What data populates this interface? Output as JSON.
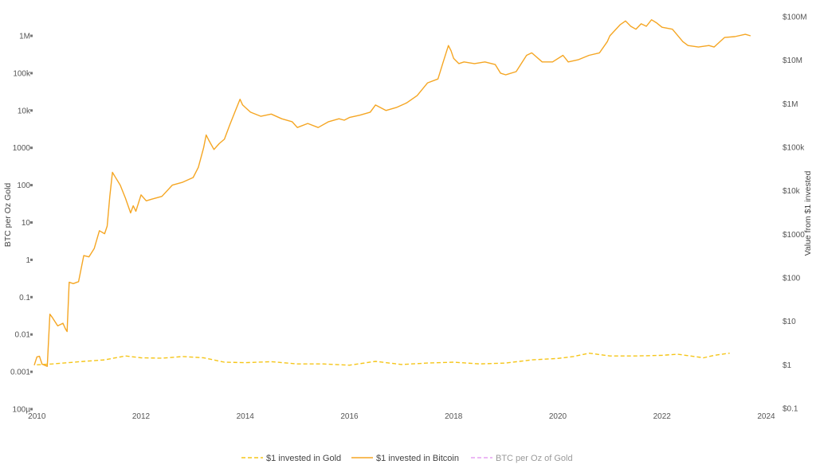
{
  "chart_data": {
    "type": "line",
    "title": "",
    "x_ticks": [
      "2010",
      "2012",
      "2014",
      "2016",
      "2018",
      "2020",
      "2022",
      "2024"
    ],
    "x_range": [
      2009.95,
      2024.1
    ],
    "left_axis": {
      "label": "BTC per Oz Gold",
      "scale": "log",
      "range": [
        0.0001,
        1000000
      ],
      "ticks": [
        "100µ",
        "0.001",
        "0.01",
        "0.1",
        "1",
        "10",
        "100",
        "1000",
        "10k",
        "100k",
        "1M"
      ]
    },
    "right_axis": {
      "label": "Value from $1 invested",
      "scale": "log",
      "range": [
        0.1,
        100000000
      ],
      "ticks": [
        "$0.1",
        "$1",
        "$10",
        "$100",
        "$1000",
        "$10k",
        "$100k",
        "$1M",
        "$10M",
        "$100M"
      ]
    },
    "legend_position": "bottom",
    "grid": false,
    "colors": {
      "gold": "#f5c518",
      "bitcoin": "#f5a623",
      "ratio": "#e6a1f2"
    },
    "series": [
      {
        "name": "$1 invested in Gold",
        "axis": "right",
        "style": "dashed",
        "x": [
          2010.0,
          2010.3,
          2010.6,
          2010.9,
          2011.3,
          2011.7,
          2012.0,
          2012.4,
          2012.8,
          2013.2,
          2013.6,
          2014.0,
          2014.5,
          2015.0,
          2015.5,
          2016.0,
          2016.5,
          2017.0,
          2017.5,
          2018.0,
          2018.5,
          2019.0,
          2019.5,
          2020.0,
          2020.3,
          2020.6,
          2021.0,
          2021.5,
          2022.0,
          2022.3,
          2022.8,
          2023.0,
          2023.3
        ],
        "y": [
          1.0,
          1.05,
          1.12,
          1.2,
          1.3,
          1.6,
          1.45,
          1.42,
          1.55,
          1.45,
          1.15,
          1.12,
          1.18,
          1.05,
          1.05,
          0.98,
          1.2,
          1.02,
          1.1,
          1.15,
          1.05,
          1.1,
          1.3,
          1.4,
          1.55,
          1.85,
          1.6,
          1.6,
          1.65,
          1.75,
          1.45,
          1.65,
          1.85
        ]
      },
      {
        "name": "$1 invested in Bitcoin",
        "axis": "left",
        "style": "solid",
        "x": [
          2009.95,
          2010.0,
          2010.05,
          2010.1,
          2010.2,
          2010.25,
          2010.3,
          2010.4,
          2010.5,
          2010.55,
          2010.58,
          2010.62,
          2010.7,
          2010.8,
          2010.9,
          2011.0,
          2011.1,
          2011.2,
          2011.3,
          2011.35,
          2011.4,
          2011.45,
          2011.5,
          2011.6,
          2011.7,
          2011.8,
          2011.85,
          2011.9,
          2012.0,
          2012.1,
          2012.2,
          2012.4,
          2012.6,
          2012.8,
          2013.0,
          2013.1,
          2013.2,
          2013.25,
          2013.3,
          2013.4,
          2013.5,
          2013.6,
          2013.7,
          2013.8,
          2013.9,
          2013.95,
          2014.1,
          2014.3,
          2014.5,
          2014.7,
          2014.9,
          2015.0,
          2015.2,
          2015.4,
          2015.6,
          2015.8,
          2015.9,
          2016.0,
          2016.2,
          2016.4,
          2016.5,
          2016.7,
          2016.9,
          2017.1,
          2017.3,
          2017.5,
          2017.7,
          2017.8,
          2017.9,
          2017.95,
          2018.0,
          2018.1,
          2018.2,
          2018.4,
          2018.6,
          2018.8,
          2018.9,
          2019.0,
          2019.2,
          2019.4,
          2019.5,
          2019.7,
          2019.9,
          2020.1,
          2020.2,
          2020.4,
          2020.6,
          2020.8,
          2020.95,
          2021.0,
          2021.2,
          2021.3,
          2021.4,
          2021.5,
          2021.6,
          2021.7,
          2021.8,
          2021.9,
          2022.0,
          2022.2,
          2022.4,
          2022.5,
          2022.7,
          2022.9,
          2023.0,
          2023.2,
          2023.4,
          2023.6,
          2023.7
        ],
        "y": [
          0.0015,
          0.0025,
          0.0026,
          0.0016,
          0.0014,
          0.035,
          0.028,
          0.017,
          0.02,
          0.014,
          0.012,
          0.25,
          0.23,
          0.26,
          1.3,
          1.2,
          2.0,
          6.0,
          5.0,
          8.0,
          50.0,
          220.0,
          170.0,
          100.0,
          45.0,
          18.0,
          28.0,
          20.0,
          55.0,
          38.0,
          42.0,
          50.0,
          100.0,
          120.0,
          160.0,
          300.0,
          1000.0,
          2200.0,
          1600.0,
          900.0,
          1300.0,
          1700.0,
          4000.0,
          9000.0,
          20000.0,
          14000.0,
          9000.0,
          7000.0,
          8000.0,
          6000.0,
          5000.0,
          3500.0,
          4500.0,
          3500.0,
          5000.0,
          6000.0,
          5500.0,
          6500.0,
          7500.0,
          9000.0,
          14000.0,
          10000.0,
          12000.0,
          16000.0,
          25000.0,
          55000.0,
          70000.0,
          200000.0,
          550000.0,
          400000.0,
          250000.0,
          180000.0,
          200000.0,
          180000.0,
          200000.0,
          170000.0,
          100000.0,
          90000.0,
          110000.0,
          300000.0,
          350000.0,
          200000.0,
          200000.0,
          300000.0,
          200000.0,
          230000.0,
          300000.0,
          350000.0,
          700000.0,
          1000000.0,
          2000000.0,
          2500000.0,
          1800000.0,
          1500000.0,
          2100000.0,
          1800000.0,
          2700000.0,
          2200000.0,
          1700000.0,
          1500000.0,
          700000.0,
          550000.0,
          500000.0,
          550000.0,
          500000.0,
          900000.0,
          950000.0,
          1100000.0,
          1000000.0
        ]
      },
      {
        "name": "BTC per Oz of Gold",
        "axis": "left",
        "style": "dashed",
        "hidden": true,
        "x": [],
        "y": []
      }
    ]
  }
}
